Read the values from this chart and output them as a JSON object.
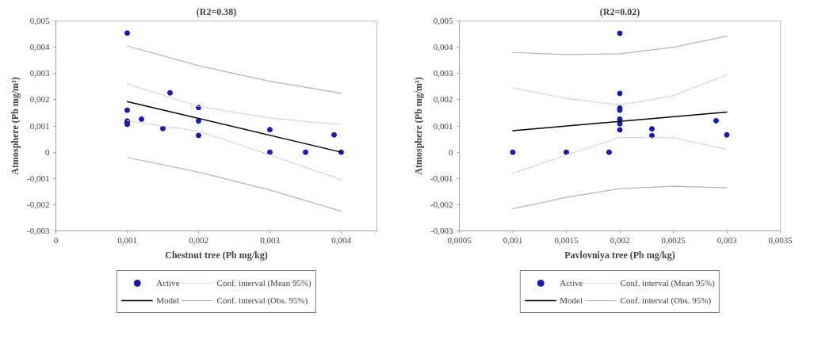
{
  "chart_data": [
    {
      "type": "scatter",
      "title": "(R2=0.38)",
      "xlabel": "Chestnut tree (Pb mg/kg)",
      "ylabel": "Atmosphere (Pb mg/m³)",
      "xlim": [
        0,
        0.0045
      ],
      "xticks": [
        0,
        {
          "value": 0.001,
          "label": "0,001"
        },
        {
          "value": 0.002,
          "label": "0,002"
        },
        {
          "value": 0.003,
          "label": "0,003"
        },
        {
          "value": 0.004,
          "label": "0,004"
        }
      ],
      "ylim": [
        -0.003,
        0.005
      ],
      "yticks": [
        {
          "value": -0.003,
          "label": "-0,003"
        },
        {
          "value": -0.002,
          "label": "-0,002"
        },
        {
          "value": -0.001,
          "label": "-0,001"
        },
        0,
        {
          "value": 0.001,
          "label": "0,001"
        },
        {
          "value": 0.002,
          "label": "0,002"
        },
        {
          "value": 0.003,
          "label": "0,003"
        },
        {
          "value": 0.004,
          "label": "0,004"
        },
        {
          "value": 0.005,
          "label": "0,005"
        }
      ],
      "grid": false,
      "legend": "bottom",
      "series": [
        {
          "name": "Active",
          "marker": "circle",
          "color": "#1a1aa8",
          "x": [
            0.001,
            0.001,
            0.001,
            0.001,
            0.001,
            0.0012,
            0.0015,
            0.0016,
            0.002,
            0.002,
            0.002,
            0.003,
            0.003,
            0.0035,
            0.0039,
            0.004
          ],
          "values": [
            0.00454,
            0.0016,
            0.00119,
            0.00113,
            0.00106,
            0.00126,
            0.0009,
            0.00226,
            0.0017,
            0.00119,
            0.00064,
            0.00086,
            0,
            0,
            0.00066,
            0
          ]
        },
        {
          "name": "Model",
          "type": "line",
          "color": "#000000",
          "line_style": "solid",
          "x": [
            0.001,
            0.004
          ],
          "values": [
            0.00193,
            0
          ]
        },
        {
          "name": "Conf. interval (Mean 95%)",
          "type": "line",
          "color": "#c8c8c8",
          "line_style": "dotted",
          "x": [
            0.001,
            0.002,
            0.003,
            0.004
          ],
          "values": [
            0.0026,
            0.00175,
            0.0013,
            0.00105
          ]
        },
        {
          "type": "line",
          "color": "#c8c8c8",
          "line_style": "dotted",
          "x": [
            0.001,
            0.002,
            0.003,
            0.004
          ],
          "values": [
            0.0012,
            0.0008,
            -0.0001,
            -0.00105
          ]
        },
        {
          "name": "Conf. interval (Obs. 95%)",
          "type": "line",
          "color": "#b4b4b4",
          "line_style": "solid",
          "x": [
            0.001,
            0.002,
            0.003,
            0.004
          ],
          "values": [
            0.00405,
            0.0033,
            0.0027,
            0.00225
          ]
        },
        {
          "type": "line",
          "color": "#b4b4b4",
          "line_style": "solid",
          "x": [
            0.001,
            0.002,
            0.003,
            0.004
          ],
          "values": [
            -0.0002,
            -0.00076,
            -0.00144,
            -0.00225
          ]
        }
      ]
    },
    {
      "type": "scatter",
      "title": "(R2=0.02)",
      "xlabel": "Pavlovniya tree (Pb mg/kg)",
      "ylabel": "Atmosphere (Pb mg/m³)",
      "xlim": [
        0.0005,
        0.0035
      ],
      "xticks": [
        {
          "value": 0.0005,
          "label": "0,0005"
        },
        {
          "value": 0.001,
          "label": "0,001"
        },
        {
          "value": 0.0015,
          "label": "0,0015"
        },
        {
          "value": 0.002,
          "label": "0,002"
        },
        {
          "value": 0.0025,
          "label": "0,0025"
        },
        {
          "value": 0.003,
          "label": "0,003"
        },
        {
          "value": 0.0035,
          "label": "0,0035"
        }
      ],
      "ylim": [
        -0.003,
        0.005
      ],
      "yticks": [
        {
          "value": -0.003,
          "label": "-0,003"
        },
        {
          "value": -0.002,
          "label": "-0,002"
        },
        {
          "value": -0.001,
          "label": "-0,001"
        },
        0,
        {
          "value": 0.001,
          "label": "0,001"
        },
        {
          "value": 0.002,
          "label": "0,002"
        },
        {
          "value": 0.003,
          "label": "0,003"
        },
        {
          "value": 0.004,
          "label": "0,004"
        },
        {
          "value": 0.005,
          "label": "0,005"
        }
      ],
      "grid": false,
      "legend": "bottom",
      "series": [
        {
          "name": "Active",
          "marker": "circle",
          "color": "#1a1aa8",
          "x": [
            0.001,
            0.0015,
            0.0019,
            0.002,
            0.002,
            0.002,
            0.002,
            0.002,
            0.002,
            0.002,
            0.002,
            0.0023,
            0.0023,
            0.0029,
            0.003
          ],
          "values": [
            0,
            0,
            0,
            0.00453,
            0.00224,
            0.00168,
            0.0016,
            0.00126,
            0.00117,
            0.00108,
            0.00085,
            0.00089,
            0.00063,
            0.0012,
            0.00066
          ]
        },
        {
          "name": "Model",
          "type": "line",
          "color": "#000000",
          "line_style": "solid",
          "x": [
            0.001,
            0.003
          ],
          "values": [
            0.00082,
            0.00153
          ]
        },
        {
          "name": "Conf. interval (Mean 95%)",
          "type": "line",
          "color": "#c8c8c8",
          "line_style": "dotted",
          "x": [
            0.001,
            0.0015,
            0.002,
            0.0025,
            0.003
          ],
          "values": [
            0.00245,
            0.00205,
            0.0018,
            0.00215,
            0.00295
          ]
        },
        {
          "type": "line",
          "color": "#c8c8c8",
          "line_style": "dotted",
          "x": [
            0.001,
            0.0015,
            0.002,
            0.0025,
            0.003
          ],
          "values": [
            -0.00081,
            -0.0001,
            0.00056,
            0.00055,
            0.00011
          ]
        },
        {
          "name": "Conf. interval (Obs. 95%)",
          "type": "line",
          "color": "#b4b4b4",
          "line_style": "solid",
          "x": [
            0.001,
            0.0015,
            0.002,
            0.0025,
            0.003
          ],
          "values": [
            0.0038,
            0.00372,
            0.00375,
            0.004,
            0.00442
          ]
        },
        {
          "type": "line",
          "color": "#b4b4b4",
          "line_style": "solid",
          "x": [
            0.001,
            0.0015,
            0.002,
            0.0025,
            0.003
          ],
          "values": [
            -0.00216,
            -0.00172,
            -0.00139,
            -0.0013,
            -0.00136
          ]
        }
      ]
    }
  ]
}
